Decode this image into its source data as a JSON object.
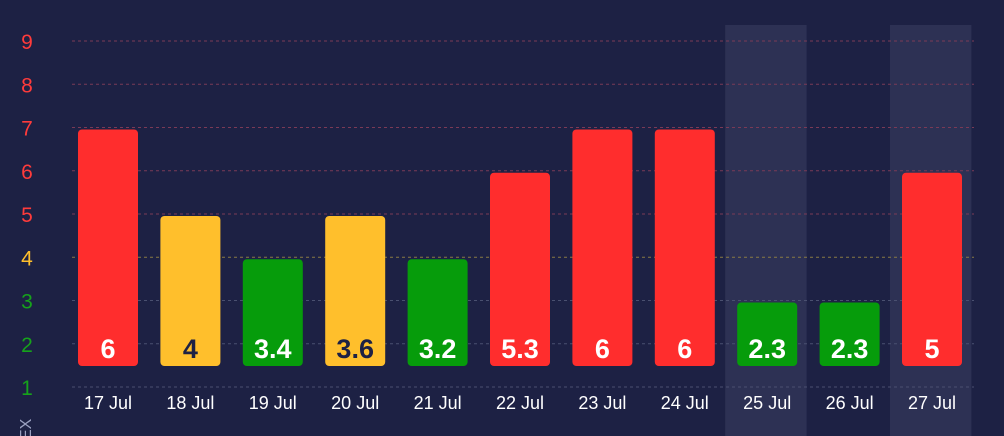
{
  "chart_data": {
    "type": "bar",
    "categories": [
      "17 Jul",
      "18 Jul",
      "19 Jul",
      "20 Jul",
      "21 Jul",
      "22 Jul",
      "23 Jul",
      "24 Jul",
      "25 Jul",
      "26 Jul",
      "27 Jul"
    ],
    "values": [
      6,
      4,
      3.4,
      3.6,
      3.2,
      5.3,
      6,
      6,
      2.3,
      2.3,
      5
    ],
    "data_labels": [
      "6",
      "4",
      "3.4",
      "3.6",
      "3.2",
      "5.3",
      "6",
      "6",
      "2.3",
      "2.3",
      "5"
    ],
    "level_index": [
      6,
      4,
      3,
      4,
      3,
      5,
      6,
      6,
      2,
      2,
      5
    ],
    "bar_colors": [
      "#ff2d2d",
      "#ffbf2c",
      "#069c0b",
      "#ffbf2c",
      "#069c0b",
      "#ff2d2d",
      "#ff2d2d",
      "#ff2d2d",
      "#069c0b",
      "#069c0b",
      "#ff2d2d"
    ],
    "data_label_colors": [
      "#ffffff",
      "#1d2144",
      "#ffffff",
      "#1d2144",
      "#ffffff",
      "#ffffff",
      "#ffffff",
      "#ffffff",
      "#ffffff",
      "#ffffff",
      "#ffffff"
    ],
    "highlighted_categories": [
      "25 Jul",
      "27 Jul"
    ],
    "y_ticks": [
      "1",
      "2",
      "3",
      "4",
      "5",
      "6",
      "7",
      "8",
      "9"
    ],
    "y_tick_colors": [
      "#16a31b",
      "#16a31b",
      "#16a31b",
      "#ffbf2c",
      "#ff3b3b",
      "#ff3b3b",
      "#ff3b3b",
      "#ff3b3b",
      "#ff3b3b"
    ],
    "ylim": [
      1,
      9
    ],
    "ylabel": "EX",
    "grid": true,
    "colors": {
      "background": "#1d2144",
      "highlight_band": "#2d3154",
      "grid_red": "#7a3a56",
      "grid_yellow": "#8a7a45",
      "grid_green": "#4a5070"
    }
  }
}
